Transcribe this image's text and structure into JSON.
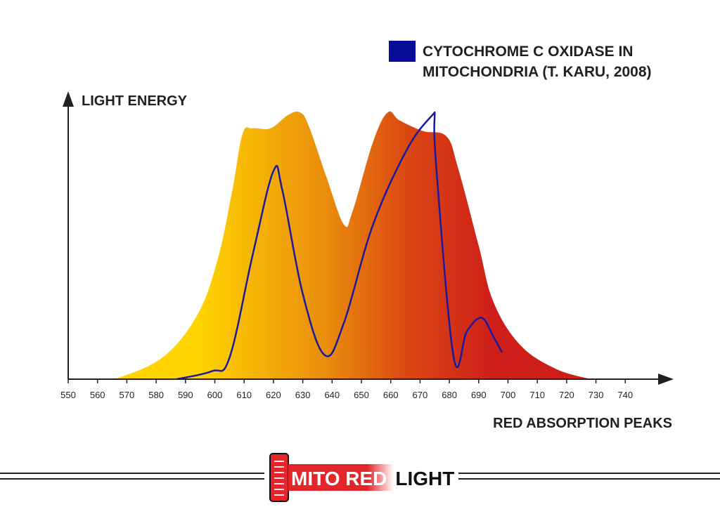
{
  "chart_data": {
    "type": "area",
    "title": "",
    "xlabel": "RED ABSORPTION PEAKS",
    "ylabel": "LIGHT ENERGY",
    "xlim": [
      550,
      750
    ],
    "ylim": [
      0,
      100
    ],
    "x_ticks": [
      550,
      560,
      570,
      580,
      590,
      600,
      610,
      620,
      630,
      640,
      650,
      660,
      670,
      680,
      690,
      700,
      710,
      720,
      730,
      740
    ],
    "legend": {
      "position": "top-right",
      "label_line1": "CYTOCHROME C OXIDASE IN",
      "label_line2": "MITOCHONDRIA (T. KARU, 2008)",
      "color": "#0a0a9a"
    },
    "series": [
      {
        "name": "Light energy",
        "kind": "area",
        "gradient": [
          "#FFD400",
          "#E98A0C",
          "#DB4A12",
          "#CE1E1A"
        ],
        "x": [
          566,
          582,
          594,
          601,
          606,
          609.5,
          613,
          619,
          625,
          629,
          632,
          638,
          644,
          647,
          654,
          659,
          663,
          671,
          679,
          683,
          690,
          695,
          704,
          716,
          728
        ],
        "y": [
          0,
          8,
          24,
          45,
          71,
          92,
          94,
          94,
          99,
          100,
          95,
          76,
          58,
          63,
          89,
          100,
          97,
          93,
          91,
          79,
          50,
          29,
          13,
          4,
          0
        ]
      },
      {
        "name": "Cytochrome C oxidase in mitochondria (T. Karu, 2008)",
        "kind": "line",
        "color": "#1a1a9e",
        "x": [
          587,
          599,
          605,
          613,
          620,
          623,
          630,
          637.5,
          644,
          654,
          666,
          675,
          675.5,
          681.5,
          686,
          691,
          695,
          698
        ],
        "y": [
          0,
          3,
          8,
          47,
          78,
          71,
          32,
          9,
          21,
          58,
          87,
          100,
          80,
          8,
          18,
          23,
          16,
          10
        ]
      }
    ]
  },
  "logo": {
    "part1": "MITO RED",
    "part2": "LIGHT"
  }
}
